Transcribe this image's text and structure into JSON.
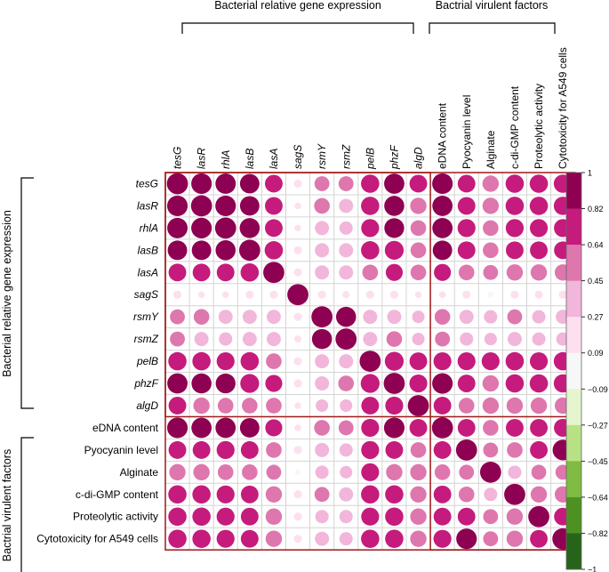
{
  "chart_data": {
    "type": "heatmap",
    "title": "",
    "group_labels": {
      "top_gene": "Bacterial relative gene expression",
      "top_virulence": "Bactrial virulent factors",
      "left_gene": "Bacterial relative gene expression",
      "left_virulence": "Bactrial virulent factors"
    },
    "columns": [
      "tesG",
      "lasR",
      "rhlA",
      "lasB",
      "lasA",
      "sagS",
      "rsmY",
      "rsmZ",
      "pelB",
      "phzF",
      "algD",
      "eDNA content",
      "Pyocyanin level",
      "Alginate",
      "c-di-GMP content",
      "Proteolytic activity",
      "Cytotoxicity for A549 cells"
    ],
    "rows": [
      "tesG",
      "lasR",
      "rhlA",
      "lasB",
      "lasA",
      "sagS",
      "rsmY",
      "rsmZ",
      "pelB",
      "phzF",
      "algD",
      "eDNA content",
      "Pyocyanin level",
      "Alginate",
      "c-di-GMP content",
      "Proteolytic activity",
      "Cytotoxicity for A549 cells"
    ],
    "italic_count": 11,
    "values": [
      [
        1.0,
        0.95,
        0.93,
        0.85,
        0.7,
        0.15,
        0.5,
        0.5,
        0.75,
        0.92,
        0.7,
        0.95,
        0.7,
        0.6,
        0.75,
        0.75,
        0.75
      ],
      [
        0.95,
        1.0,
        0.95,
        0.85,
        0.7,
        0.1,
        0.55,
        0.45,
        0.75,
        0.9,
        0.6,
        0.92,
        0.7,
        0.6,
        0.75,
        0.75,
        0.75
      ],
      [
        0.93,
        0.95,
        1.0,
        0.9,
        0.7,
        0.1,
        0.45,
        0.4,
        0.72,
        0.88,
        0.55,
        0.92,
        0.72,
        0.55,
        0.72,
        0.72,
        0.72
      ],
      [
        0.85,
        0.85,
        0.9,
        1.0,
        0.75,
        0.15,
        0.45,
        0.45,
        0.75,
        0.8,
        0.55,
        0.85,
        0.7,
        0.55,
        0.7,
        0.7,
        0.7
      ],
      [
        0.7,
        0.7,
        0.7,
        0.75,
        1.0,
        0.15,
        0.45,
        0.45,
        0.55,
        0.65,
        0.55,
        0.65,
        0.55,
        0.5,
        0.6,
        0.6,
        0.6
      ],
      [
        0.15,
        0.1,
        0.1,
        0.15,
        0.15,
        1.0,
        0.15,
        0.12,
        0.15,
        0.15,
        0.1,
        0.1,
        0.15,
        0.08,
        0.15,
        0.15,
        0.15
      ],
      [
        0.5,
        0.55,
        0.45,
        0.45,
        0.45,
        0.15,
        1.0,
        0.9,
        0.45,
        0.45,
        0.35,
        0.55,
        0.45,
        0.4,
        0.5,
        0.4,
        0.45
      ],
      [
        0.5,
        0.45,
        0.4,
        0.45,
        0.45,
        0.12,
        0.9,
        1.0,
        0.45,
        0.55,
        0.35,
        0.5,
        0.4,
        0.35,
        0.45,
        0.4,
        0.4
      ],
      [
        0.75,
        0.75,
        0.72,
        0.75,
        0.55,
        0.15,
        0.45,
        0.45,
        1.0,
        0.8,
        0.7,
        0.72,
        0.72,
        0.72,
        0.75,
        0.72,
        0.75
      ],
      [
        0.92,
        0.9,
        0.88,
        0.8,
        0.65,
        0.15,
        0.45,
        0.55,
        0.8,
        1.0,
        0.72,
        0.95,
        0.7,
        0.6,
        0.75,
        0.75,
        0.75
      ],
      [
        0.7,
        0.6,
        0.55,
        0.55,
        0.55,
        0.1,
        0.35,
        0.35,
        0.7,
        0.72,
        1.0,
        0.7,
        0.55,
        0.6,
        0.6,
        0.6,
        0.6
      ],
      [
        0.95,
        0.92,
        0.92,
        0.85,
        0.65,
        0.1,
        0.55,
        0.5,
        0.72,
        0.95,
        0.7,
        1.0,
        0.7,
        0.55,
        0.7,
        0.7,
        0.72
      ],
      [
        0.7,
        0.7,
        0.72,
        0.7,
        0.55,
        0.15,
        0.45,
        0.4,
        0.72,
        0.7,
        0.55,
        0.7,
        1.0,
        0.5,
        0.55,
        0.7,
        0.95
      ],
      [
        0.6,
        0.6,
        0.55,
        0.55,
        0.5,
        0.08,
        0.4,
        0.35,
        0.72,
        0.6,
        0.6,
        0.55,
        0.5,
        1.0,
        0.4,
        0.5,
        0.5
      ],
      [
        0.75,
        0.75,
        0.72,
        0.7,
        0.6,
        0.15,
        0.5,
        0.45,
        0.75,
        0.75,
        0.6,
        0.7,
        0.55,
        0.4,
        1.0,
        0.6,
        0.6
      ],
      [
        0.75,
        0.75,
        0.72,
        0.7,
        0.6,
        0.15,
        0.4,
        0.4,
        0.72,
        0.75,
        0.6,
        0.7,
        0.7,
        0.5,
        0.6,
        1.0,
        0.7
      ],
      [
        0.75,
        0.75,
        0.72,
        0.7,
        0.6,
        0.15,
        0.45,
        0.4,
        0.75,
        0.75,
        0.6,
        0.72,
        0.95,
        0.5,
        0.6,
        0.7,
        1.0
      ]
    ],
    "colorbar": {
      "range": [
        -1,
        1
      ],
      "ticks": [
        "1",
        "0.82",
        "0.64",
        "0.45",
        "0.27",
        "0.09",
        "−0.09",
        "−0.27",
        "−0.45",
        "−0.64",
        "−0.82",
        "−1"
      ],
      "colors": [
        "#8e0152",
        "#c51b7d",
        "#de77ae",
        "#f1b6da",
        "#fde0ef",
        "#f7f7f7",
        "#e6f5d0",
        "#b8e186",
        "#7fbc41",
        "#4d9221",
        "#276419"
      ]
    },
    "block_outline_color": "#a01919"
  }
}
